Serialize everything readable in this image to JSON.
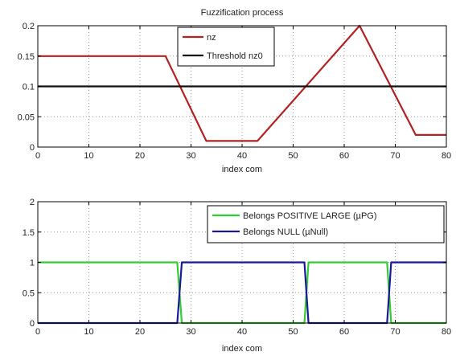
{
  "chart_data": [
    {
      "type": "line",
      "title": "Fuzzification process",
      "xlabel": "index com",
      "ylabel": "",
      "xlim": [
        0,
        80
      ],
      "ylim": [
        0,
        0.2
      ],
      "xticks": [
        "0",
        "10",
        "20",
        "30",
        "40",
        "50",
        "60",
        "70",
        "80"
      ],
      "yticks": [
        "0",
        "0.05",
        "0.1",
        "0.15",
        "0.2"
      ],
      "grid": true,
      "legend_position": "top-center",
      "series": [
        {
          "name": "nz",
          "color": "#b22222",
          "points": [
            [
              0,
              0.15
            ],
            [
              25,
              0.15
            ],
            [
              33,
              0.01
            ],
            [
              43,
              0.01
            ],
            [
              63,
              0.2
            ],
            [
              74,
              0.02
            ],
            [
              80,
              0.02
            ]
          ]
        },
        {
          "name": "Threshold nz0",
          "color": "#111111",
          "points": [
            [
              0,
              0.1
            ],
            [
              80,
              0.1
            ]
          ]
        }
      ]
    },
    {
      "type": "line",
      "title": "",
      "xlabel": "index com",
      "ylabel": "",
      "xlim": [
        0,
        80
      ],
      "ylim": [
        0,
        2
      ],
      "xticks": [
        "0",
        "10",
        "20",
        "30",
        "40",
        "50",
        "60",
        "70",
        "80"
      ],
      "yticks": [
        "0",
        "0.5",
        "1",
        "1.5",
        "2"
      ],
      "grid": true,
      "legend_position": "top-right",
      "series": [
        {
          "name": "Belongs POSITIVE LARGE (µPG)",
          "color": "#33cc33",
          "points": [
            [
              0,
              1
            ],
            [
              27.3,
              1
            ],
            [
              28.2,
              0
            ],
            [
              52.2,
              0
            ],
            [
              53,
              1
            ],
            [
              68.4,
              1
            ],
            [
              69.2,
              0
            ],
            [
              80,
              0
            ]
          ]
        },
        {
          "name": "Belongs NULL (µNull)",
          "color": "#1a1a99",
          "points": [
            [
              0,
              0
            ],
            [
              27.3,
              0
            ],
            [
              28.2,
              1
            ],
            [
              52.2,
              1
            ],
            [
              53,
              0
            ],
            [
              68.4,
              0
            ],
            [
              69.2,
              1
            ],
            [
              80,
              1
            ]
          ]
        }
      ]
    }
  ]
}
